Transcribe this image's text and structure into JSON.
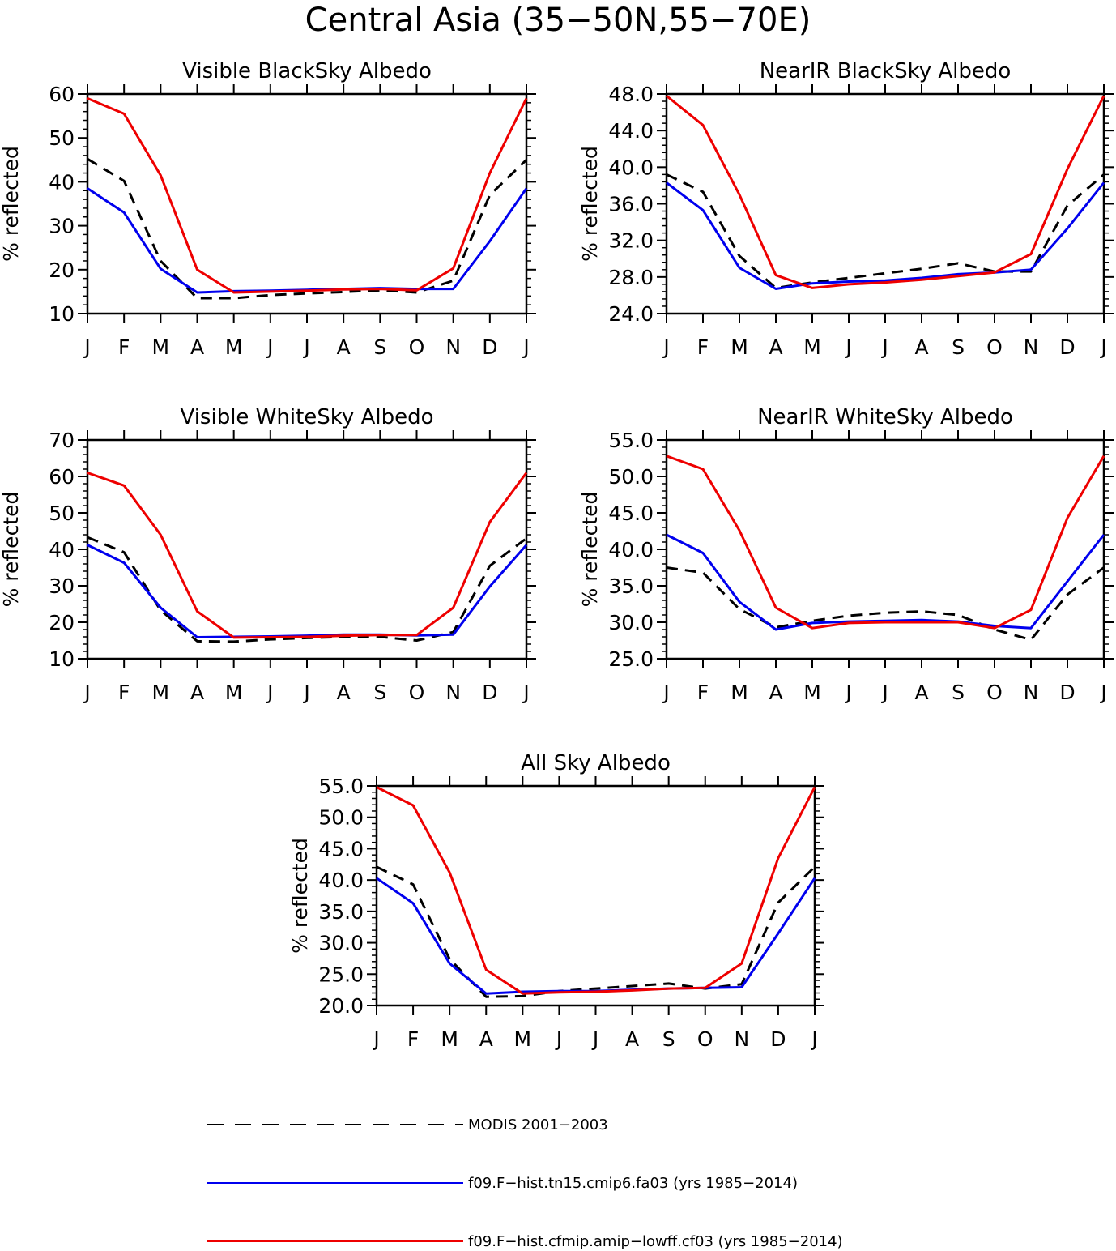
{
  "title": "Central Asia (35−50N,55−70E)",
  "colors": {
    "modis": "#000000",
    "fa03": "#0000ee",
    "cf03": "#ee0000"
  },
  "legend": [
    {
      "key": "modis",
      "label": "MODIS 2001−2003",
      "dash": true
    },
    {
      "key": "fa03",
      "label": "f09.F−hist.tn15.cmip6.fa03 (yrs 1985−2014)",
      "dash": false
    },
    {
      "key": "cf03",
      "label": "f09.F−hist.cfmip.amip−lowff.cf03 (yrs 1985−2014)",
      "dash": false
    }
  ],
  "chart_data": [
    {
      "type": "line",
      "title": "Visible BlackSky Albedo",
      "ylabel": "% reflected",
      "xlabel": "",
      "categories": [
        "J",
        "F",
        "M",
        "A",
        "M",
        "J",
        "J",
        "A",
        "S",
        "O",
        "N",
        "D",
        "J"
      ],
      "ylim": [
        10,
        60
      ],
      "yticks": [
        "10",
        "20",
        "30",
        "40",
        "50",
        "60"
      ],
      "grid": false,
      "series": [
        {
          "key": "modis",
          "values": [
            45.2,
            40.2,
            22.0,
            13.5,
            13.5,
            14.2,
            14.6,
            14.9,
            15.3,
            14.8,
            17.5,
            37.0,
            45.0
          ]
        },
        {
          "key": "fa03",
          "values": [
            38.5,
            33.0,
            20.2,
            14.8,
            15.1,
            15.2,
            15.4,
            15.6,
            15.8,
            15.6,
            15.6,
            26.5,
            38.5
          ]
        },
        {
          "key": "cf03",
          "values": [
            59.0,
            55.5,
            41.5,
            20.0,
            14.8,
            15.0,
            15.2,
            15.5,
            15.6,
            15.3,
            20.3,
            42.0,
            59.0
          ]
        }
      ]
    },
    {
      "type": "line",
      "title": "NearIR BlackSky Albedo",
      "ylabel": "% reflected",
      "xlabel": "",
      "categories": [
        "J",
        "F",
        "M",
        "A",
        "M",
        "J",
        "J",
        "A",
        "S",
        "O",
        "N",
        "D",
        "J"
      ],
      "ylim": [
        24,
        48
      ],
      "yticks": [
        "24.0",
        "28.0",
        "32.0",
        "36.0",
        "40.0",
        "44.0",
        "48.0"
      ],
      "grid": false,
      "series": [
        {
          "key": "modis",
          "values": [
            39.2,
            37.3,
            30.3,
            26.8,
            27.4,
            27.9,
            28.4,
            28.9,
            29.5,
            28.6,
            28.6,
            35.8,
            39.2
          ]
        },
        {
          "key": "fa03",
          "values": [
            38.3,
            35.3,
            29.0,
            26.7,
            27.3,
            27.5,
            27.6,
            27.9,
            28.3,
            28.5,
            28.8,
            33.3,
            38.3
          ]
        },
        {
          "key": "cf03",
          "values": [
            47.8,
            44.6,
            37.0,
            28.2,
            26.8,
            27.2,
            27.4,
            27.7,
            28.1,
            28.5,
            30.5,
            39.8,
            47.8
          ]
        }
      ]
    },
    {
      "type": "line",
      "title": "Visible WhiteSky Albedo",
      "ylabel": "% reflected",
      "xlabel": "",
      "categories": [
        "J",
        "F",
        "M",
        "A",
        "M",
        "J",
        "J",
        "A",
        "S",
        "O",
        "N",
        "D",
        "J"
      ],
      "ylim": [
        10,
        70
      ],
      "yticks": [
        "10",
        "20",
        "30",
        "40",
        "50",
        "60",
        "70"
      ],
      "grid": false,
      "series": [
        {
          "key": "modis",
          "values": [
            43.3,
            39.2,
            23.3,
            14.8,
            14.7,
            15.3,
            15.7,
            16.0,
            16.0,
            15.0,
            17.3,
            35.5,
            43.0
          ]
        },
        {
          "key": "fa03",
          "values": [
            41.2,
            36.3,
            24.0,
            15.9,
            16.0,
            16.1,
            16.3,
            16.6,
            16.6,
            16.4,
            16.6,
            29.8,
            41.2
          ]
        },
        {
          "key": "cf03",
          "values": [
            61.0,
            57.5,
            44.0,
            23.0,
            15.8,
            15.9,
            16.0,
            16.3,
            16.5,
            16.5,
            24.0,
            47.5,
            61.0
          ]
        }
      ]
    },
    {
      "type": "line",
      "title": "NearIR WhiteSky Albedo",
      "ylabel": "% reflected",
      "xlabel": "",
      "categories": [
        "J",
        "F",
        "M",
        "A",
        "M",
        "J",
        "J",
        "A",
        "S",
        "O",
        "N",
        "D",
        "J"
      ],
      "ylim": [
        25,
        55
      ],
      "yticks": [
        "25.0",
        "30.0",
        "35.0",
        "40.0",
        "45.0",
        "50.0",
        "55.0"
      ],
      "grid": false,
      "series": [
        {
          "key": "modis",
          "values": [
            37.5,
            36.8,
            31.8,
            29.3,
            30.2,
            30.9,
            31.3,
            31.5,
            31.0,
            29.0,
            27.6,
            33.8,
            37.5
          ]
        },
        {
          "key": "fa03",
          "values": [
            42.0,
            39.5,
            32.8,
            29.0,
            29.9,
            30.1,
            30.2,
            30.3,
            30.1,
            29.5,
            29.2,
            35.6,
            42.0
          ]
        },
        {
          "key": "cf03",
          "values": [
            52.8,
            51.0,
            42.6,
            32.0,
            29.2,
            29.9,
            30.0,
            30.0,
            30.0,
            29.2,
            31.7,
            44.3,
            52.8
          ]
        }
      ]
    },
    {
      "type": "line",
      "title": "All Sky Albedo",
      "ylabel": "% reflected",
      "xlabel": "",
      "categories": [
        "J",
        "F",
        "M",
        "A",
        "M",
        "J",
        "J",
        "A",
        "S",
        "O",
        "N",
        "D",
        "J"
      ],
      "ylim": [
        20,
        55
      ],
      "yticks": [
        "20.0",
        "25.0",
        "30.0",
        "35.0",
        "40.0",
        "45.0",
        "50.0",
        "55.0"
      ],
      "grid": false,
      "series": [
        {
          "key": "modis",
          "values": [
            42.1,
            39.3,
            27.4,
            21.4,
            21.5,
            22.3,
            22.7,
            23.1,
            23.5,
            22.7,
            23.4,
            36.4,
            42.1
          ]
        },
        {
          "key": "fa03",
          "values": [
            40.3,
            36.3,
            26.7,
            21.9,
            22.2,
            22.3,
            22.3,
            22.5,
            22.7,
            22.8,
            22.9,
            31.5,
            40.3
          ]
        },
        {
          "key": "cf03",
          "values": [
            54.8,
            51.9,
            41.2,
            25.7,
            21.9,
            22.1,
            22.2,
            22.4,
            22.7,
            22.8,
            26.7,
            43.5,
            54.8
          ]
        }
      ]
    }
  ]
}
